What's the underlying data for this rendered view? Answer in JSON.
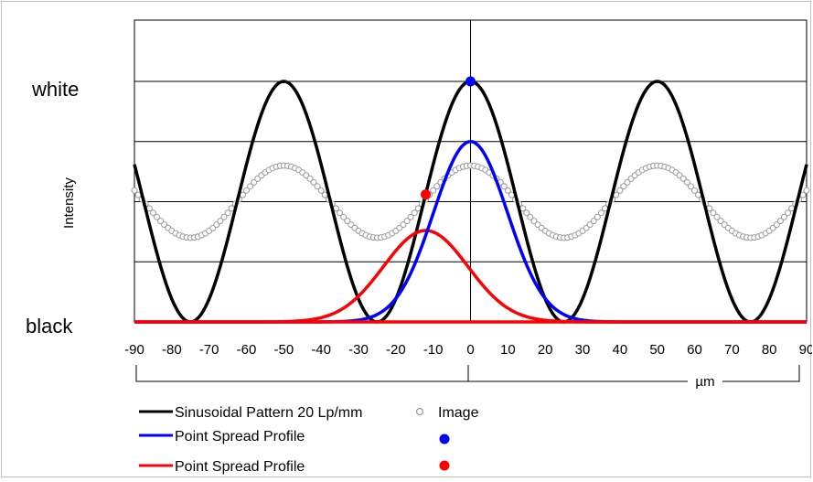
{
  "chart_data": {
    "type": "line",
    "xlabel": "µm",
    "ylabel": "Intensity",
    "xlim": [
      -90,
      90
    ],
    "xticks": [
      -90,
      -80,
      -70,
      -60,
      -50,
      -40,
      -30,
      -20,
      -10,
      0,
      10,
      20,
      30,
      40,
      50,
      60,
      70,
      80,
      90
    ],
    "ylim": [
      0,
      1
    ],
    "y_level_labels": {
      "top": "white",
      "bottom": "black"
    },
    "grid": {
      "horizontal": true,
      "vertical_at_zero": true
    },
    "legend_position": "bottom-left",
    "series": [
      {
        "name": "Sinusoidal Pattern 20 Lp/mm",
        "style": "line",
        "color": "#000000",
        "function": "0.5 + 0.5*cos(2*pi*x/50)",
        "frequency_lp_per_mm": 20,
        "min": 0,
        "max": 1
      },
      {
        "name": "Image",
        "style": "open-circles",
        "color": "#999999",
        "function": "0.5 + 0.15*cos(2*pi*x/50)",
        "x_step": 1,
        "min": 0.35,
        "max": 0.65
      },
      {
        "name": "Point Spread Profile",
        "style": "line",
        "color": "#0000ff",
        "function": "peak*exp(-((x-center)/width)^2)",
        "center": 0,
        "peak": 0.75,
        "width": 14
      },
      {
        "name": "Point Spread Profile",
        "style": "line",
        "color": "#ff0000",
        "function": "peak*exp(-((x-center)/width)^2)",
        "center": -12,
        "peak": 0.38,
        "width": 16
      }
    ],
    "markers": [
      {
        "x": 0,
        "y": 1.0,
        "color": "#0000ff"
      },
      {
        "x": -12,
        "y": 0.53,
        "color": "#ff0000"
      }
    ]
  }
}
